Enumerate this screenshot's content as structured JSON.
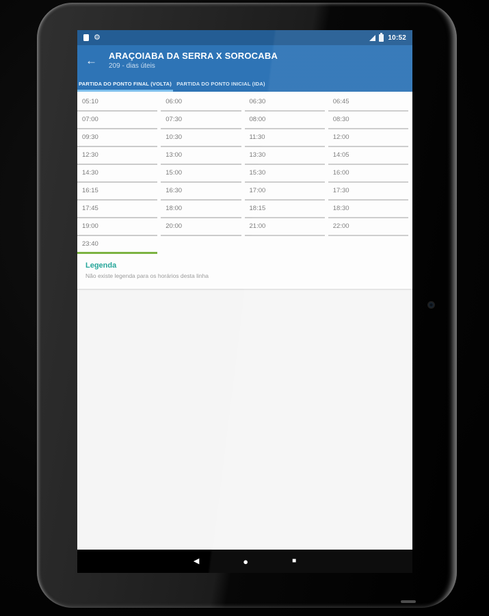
{
  "status_bar": {
    "time": "10:52",
    "left_icons": [
      "notification-doc-icon",
      "gear-icon"
    ],
    "right_icons": [
      "cell-signal-icon",
      "battery-icon"
    ],
    "gear_glyph": "⚙"
  },
  "app_bar": {
    "back_glyph": "←",
    "title": "ARAÇOIABA DA SERRA X SOROCABA",
    "subtitle": "209 - dias úteis"
  },
  "tabs": [
    {
      "label": "PARTIDA DO PONTO FINAL (VOLTA)",
      "active": true
    },
    {
      "label": "PARTIDA DO PONTO INICIAL (IDA)",
      "active": false
    }
  ],
  "schedule": {
    "times": [
      "05:10",
      "06:00",
      "06:30",
      "06:45",
      "07:00",
      "07:30",
      "08:00",
      "08:30",
      "09:30",
      "10:30",
      "11:30",
      "12:00",
      "12:30",
      "13:00",
      "13:30",
      "14:05",
      "14:30",
      "15:00",
      "15:30",
      "16:00",
      "16:15",
      "16:30",
      "17:00",
      "17:30",
      "17:45",
      "18:00",
      "18:15",
      "18:30",
      "19:00",
      "20:00",
      "21:00",
      "22:00",
      "23:40"
    ],
    "highlighted_time": "23:40",
    "columns": 4
  },
  "legend": {
    "title": "Legenda",
    "text": "Não existe legenda para os horários desta linha"
  },
  "nav_bar": {
    "back_glyph": "◀",
    "home_glyph": "●",
    "recents_glyph": "■"
  },
  "colors": {
    "status_bar_blue": "#245d94",
    "header_blue": "#2e74b6",
    "tab_underline_blue": "#7fc0ed",
    "highlight_green": "#7cb342",
    "legend_teal": "#26a69a",
    "time_text_gray": "#7a7a7a"
  }
}
